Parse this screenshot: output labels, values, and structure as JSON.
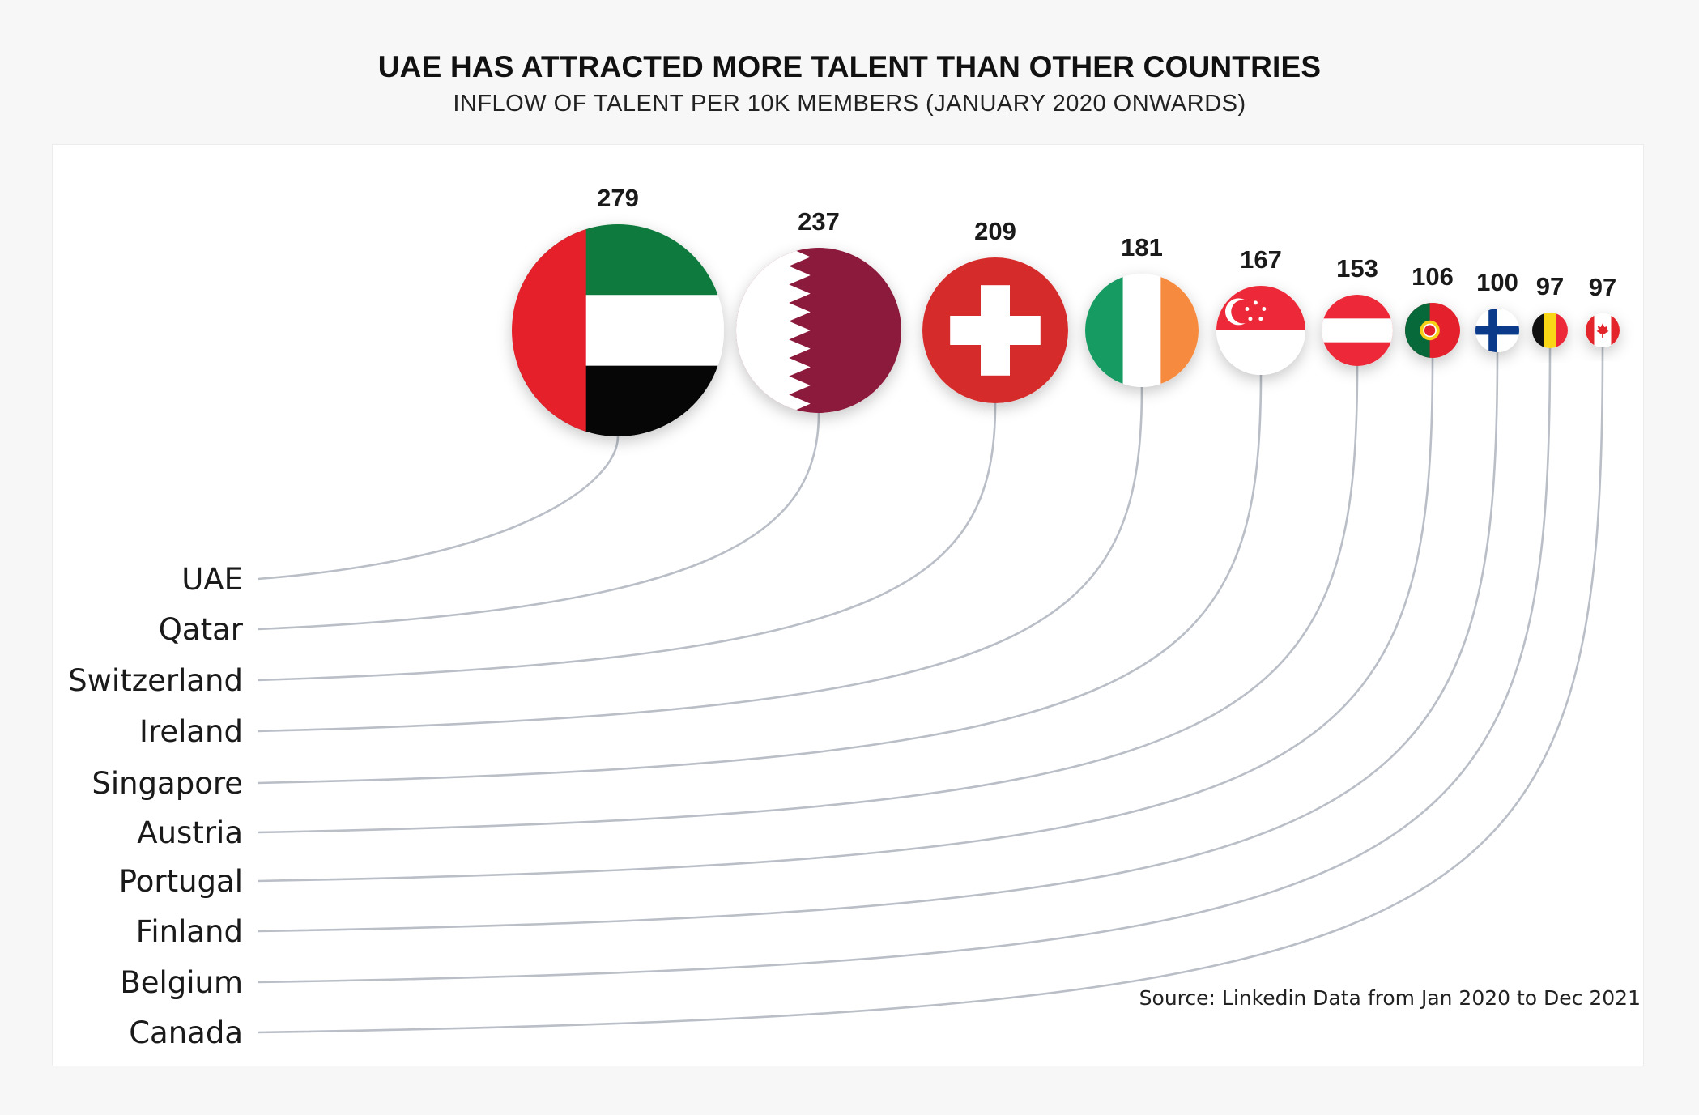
{
  "title": "UAE HAS ATTRACTED MORE TALENT THAN OTHER COUNTRIES",
  "subtitle": "INFLOW OF TALENT PER 10K MEMBERS (JANUARY 2020 ONWARDS)",
  "source": "Source: Linkedin Data from Jan 2020 to Dec 2021",
  "chart_data": {
    "type": "bubble",
    "title": "UAE HAS ATTRACTED MORE TALENT THAN OTHER COUNTRIES",
    "subtitle": "INFLOW OF TALENT PER 10K MEMBERS (JANUARY 2020 ONWARDS)",
    "categories": [
      "UAE",
      "Qatar",
      "Switzerland",
      "Ireland",
      "Singapore",
      "Austria",
      "Portugal",
      "Finland",
      "Belgium",
      "Canada"
    ],
    "values": [
      279,
      237,
      209,
      181,
      167,
      153,
      106,
      100,
      97,
      97
    ],
    "flags": [
      "uae-flag",
      "qatar-flag",
      "switzerland-flag",
      "ireland-flag",
      "singapore-flag",
      "austria-flag",
      "portugal-flag",
      "finland-flag",
      "belgium-flag",
      "canada-flag"
    ],
    "connector_color": "#b9bec7"
  }
}
